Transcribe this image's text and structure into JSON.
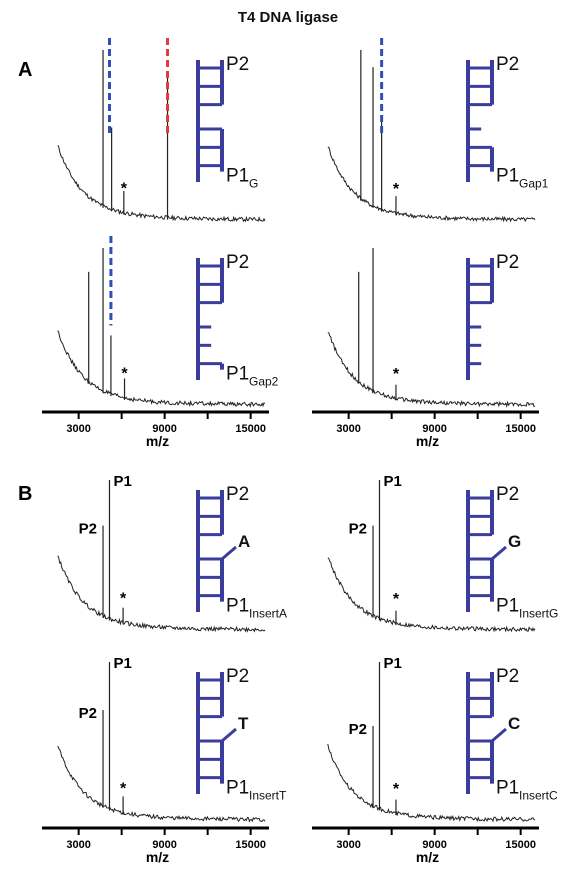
{
  "title": "T4 DNA ligase",
  "colors": {
    "dna": "#3a3d9c",
    "blue_marker": "#2e4fb8",
    "red_marker": "#e03a3a",
    "trace": "#222222"
  },
  "axis": {
    "label": "m/z",
    "ticks": [
      3000,
      9000,
      15000
    ]
  },
  "chart_data": [
    {
      "type": "line",
      "panel": "A",
      "position": "top-left",
      "xlabel": "m/z",
      "xlim": [
        1000,
        16000
      ],
      "peaks": [
        {
          "x": 4700,
          "h": 1.0
        },
        {
          "x": 5300,
          "h": 0.55
        },
        {
          "x": 6150,
          "h": 0.18
        },
        {
          "x": 9200,
          "h": 0.85
        }
      ],
      "markers": [
        {
          "x": 5150,
          "color": "blue"
        },
        {
          "x": 9200,
          "color": "red"
        }
      ],
      "star_x": 6150,
      "strand": {
        "label": "P2",
        "label2": "P1",
        "sub": "G",
        "gaps": 0,
        "insert": ""
      }
    },
    {
      "type": "line",
      "panel": "A",
      "position": "top-right",
      "xlabel": "m/z",
      "xlim": [
        1000,
        16000
      ],
      "peaks": [
        {
          "x": 3850,
          "h": 1.0
        },
        {
          "x": 4700,
          "h": 0.9
        },
        {
          "x": 5300,
          "h": 0.6
        },
        {
          "x": 6300,
          "h": 0.15
        }
      ],
      "markers": [
        {
          "x": 5300,
          "color": "blue"
        }
      ],
      "star_x": 6300,
      "strand": {
        "label": "P2",
        "label2": "P1",
        "sub": "Gap1",
        "gaps": 1,
        "insert": ""
      }
    },
    {
      "type": "line",
      "panel": "A",
      "position": "bottom-left",
      "xlabel": "m/z",
      "xlim": [
        1000,
        16000
      ],
      "peaks": [
        {
          "x": 3700,
          "h": 0.85
        },
        {
          "x": 4700,
          "h": 1.0
        },
        {
          "x": 5250,
          "h": 0.45
        },
        {
          "x": 6200,
          "h": 0.18
        }
      ],
      "markers": [
        {
          "x": 5250,
          "color": "blue"
        }
      ],
      "star_x": 6200,
      "strand": {
        "label": "P2",
        "label2": "P1",
        "sub": "Gap2",
        "gaps": 2,
        "insert": ""
      }
    },
    {
      "type": "line",
      "panel": "A",
      "position": "bottom-right",
      "xlabel": "m/z",
      "xlim": [
        1000,
        16000
      ],
      "peaks": [
        {
          "x": 3700,
          "h": 0.85
        },
        {
          "x": 4700,
          "h": 1.0
        },
        {
          "x": 6300,
          "h": 0.14
        }
      ],
      "markers": [],
      "star_x": 6300,
      "strand": {
        "label": "P2",
        "label2": "",
        "sub": "",
        "gaps": 3,
        "insert": ""
      }
    },
    {
      "type": "line",
      "panel": "B",
      "position": "top-left",
      "xlabel": "m/z",
      "xlim": [
        1000,
        16000
      ],
      "peaks": [
        {
          "x": 4700,
          "h": 0.7
        },
        {
          "x": 5150,
          "h": 1.0
        },
        {
          "x": 6100,
          "h": 0.16
        }
      ],
      "markers": [],
      "star_x": 6100,
      "peak_labels": [
        {
          "text": "P2",
          "x": 4700
        },
        {
          "text": "P1",
          "x": 5150
        }
      ],
      "strand": {
        "label": "P2",
        "label2": "P1",
        "sub": "InsertA",
        "gaps": 0,
        "insert": "A"
      }
    },
    {
      "type": "line",
      "panel": "B",
      "position": "top-right",
      "xlabel": "m/z",
      "xlim": [
        1000,
        16000
      ],
      "peaks": [
        {
          "x": 4700,
          "h": 0.7
        },
        {
          "x": 5150,
          "h": 1.0
        },
        {
          "x": 6300,
          "h": 0.14
        }
      ],
      "markers": [],
      "star_x": 6300,
      "peak_labels": [
        {
          "text": "P2",
          "x": 4700
        },
        {
          "text": "P1",
          "x": 5150
        }
      ],
      "strand": {
        "label": "P2",
        "label2": "P1",
        "sub": "InsertG",
        "gaps": 0,
        "insert": "G"
      }
    },
    {
      "type": "line",
      "panel": "B",
      "position": "bottom-left",
      "xlabel": "m/z",
      "xlim": [
        1000,
        16000
      ],
      "peaks": [
        {
          "x": 4700,
          "h": 0.7
        },
        {
          "x": 5150,
          "h": 1.0
        },
        {
          "x": 6100,
          "h": 0.16
        }
      ],
      "markers": [],
      "star_x": 6100,
      "peak_labels": [
        {
          "text": "P2",
          "x": 4700
        },
        {
          "text": "P1",
          "x": 5150
        }
      ],
      "strand": {
        "label": "P2",
        "label2": "P1",
        "sub": "InsertT",
        "gaps": 0,
        "insert": "T"
      }
    },
    {
      "type": "line",
      "panel": "B",
      "position": "bottom-right",
      "xlabel": "m/z",
      "xlim": [
        1000,
        16000
      ],
      "peaks": [
        {
          "x": 4700,
          "h": 0.6
        },
        {
          "x": 5150,
          "h": 1.0
        },
        {
          "x": 6300,
          "h": 0.14
        }
      ],
      "markers": [],
      "star_x": 6300,
      "peak_labels": [
        {
          "text": "P2",
          "x": 4700
        },
        {
          "text": "P1",
          "x": 5150
        }
      ],
      "strand": {
        "label": "P2",
        "label2": "P1",
        "sub": "InsertC",
        "gaps": 0,
        "insert": "C"
      }
    }
  ]
}
